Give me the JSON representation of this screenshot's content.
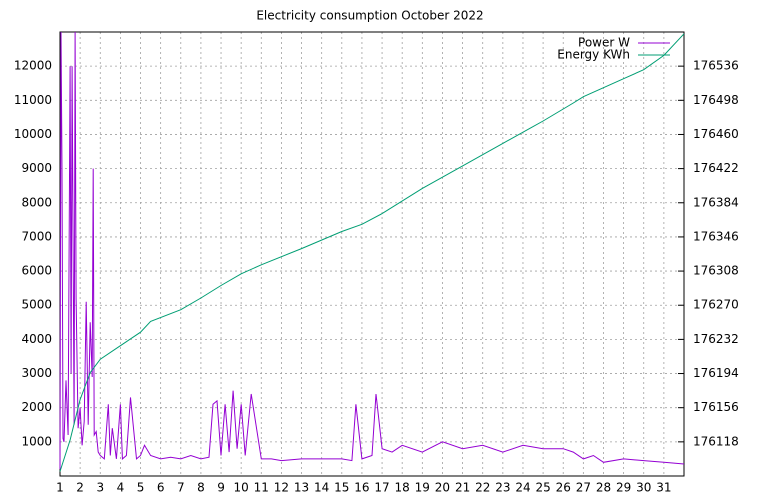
{
  "chart_data": {
    "type": "line",
    "title": "Electricity consumption October 2022",
    "xlim": [
      1,
      32
    ],
    "xticks": [
      1,
      2,
      3,
      4,
      5,
      6,
      7,
      8,
      9,
      10,
      11,
      12,
      13,
      14,
      15,
      16,
      17,
      18,
      19,
      20,
      21,
      22,
      23,
      24,
      25,
      26,
      27,
      28,
      29,
      30,
      31
    ],
    "ylim": [
      0,
      13000
    ],
    "yticks": [
      1000,
      2000,
      3000,
      4000,
      5000,
      6000,
      7000,
      8000,
      9000,
      10000,
      11000,
      12000
    ],
    "y2lim": [
      176080,
      176574
    ],
    "y2ticks": [
      176118,
      176156,
      176194,
      176232,
      176270,
      176308,
      176346,
      176384,
      176422,
      176460,
      176498,
      176536
    ],
    "grid": true,
    "legend": "top-right",
    "series": [
      {
        "name": "Power W",
        "color": "#9400d3",
        "x": [
          1,
          1.05,
          1.1,
          1.15,
          1.2,
          1.3,
          1.4,
          1.5,
          1.55,
          1.6,
          1.7,
          1.75,
          1.8,
          1.9,
          2,
          2.1,
          2.2,
          2.3,
          2.4,
          2.5,
          2.6,
          2.65,
          2.7,
          2.8,
          2.9,
          3,
          3.2,
          3.4,
          3.5,
          3.6,
          3.8,
          4,
          4.1,
          4.3,
          4.5,
          4.8,
          5,
          5.2,
          5.5,
          6,
          6.5,
          7,
          7.5,
          8,
          8.4,
          8.6,
          8.8,
          9,
          9.2,
          9.4,
          9.6,
          9.8,
          10,
          10.2,
          10.5,
          11,
          11.5,
          12,
          13,
          14,
          15,
          15.5,
          15.7,
          16,
          16.5,
          16.7,
          17,
          17.5,
          18,
          19,
          20,
          21,
          22,
          23,
          24,
          25,
          26,
          26.5,
          27,
          27.5,
          28,
          29,
          30,
          31,
          32
        ],
        "values": [
          200,
          13000,
          9000,
          1100,
          1000,
          2800,
          1200,
          12000,
          3000,
          12000,
          1500,
          13000,
          5200,
          1400,
          2000,
          900,
          1600,
          5100,
          1500,
          4500,
          2900,
          9000,
          1200,
          1300,
          700,
          600,
          500,
          2100,
          600,
          1400,
          500,
          2100,
          500,
          600,
          2300,
          500,
          600,
          900,
          600,
          500,
          550,
          500,
          600,
          500,
          550,
          2100,
          2200,
          600,
          2100,
          700,
          2500,
          800,
          2100,
          600,
          2400,
          500,
          500,
          450,
          500,
          500,
          500,
          450,
          2100,
          500,
          600,
          2400,
          800,
          700,
          900,
          700,
          1000,
          800,
          900,
          700,
          900,
          800,
          800,
          700,
          500,
          600,
          400,
          500,
          450,
          400,
          350
        ]
      },
      {
        "name": "Energy KWh",
        "color": "#009e73",
        "axis": "y2",
        "x": [
          1,
          1.5,
          2,
          2.5,
          3,
          4,
          5,
          5.5,
          7,
          8,
          9,
          10,
          11,
          13,
          15,
          16,
          17,
          19,
          21,
          23,
          25,
          26.5,
          27,
          29,
          30,
          31,
          32
        ],
        "values": [
          176085,
          176120,
          176165,
          176195,
          176210,
          176225,
          176240,
          176252,
          176265,
          176278,
          176292,
          176305,
          176315,
          176333,
          176352,
          176360,
          176372,
          176400,
          176425,
          176450,
          176475,
          176495,
          176502,
          176522,
          176532,
          176548,
          176572
        ]
      }
    ]
  }
}
